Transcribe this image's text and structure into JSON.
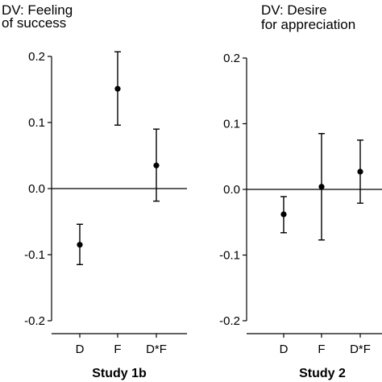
{
  "chart_data": [
    {
      "type": "scatter",
      "title_lines": [
        "DV: Feeling",
        "of success"
      ],
      "xlabel": "Study 1b",
      "ylabel": "",
      "categories": [
        "D",
        "F",
        "D*F"
      ],
      "values": [
        -0.085,
        0.151,
        0.035
      ],
      "error_low": [
        -0.115,
        0.096,
        -0.019
      ],
      "error_high": [
        -0.054,
        0.207,
        0.09
      ],
      "yticks": [
        "0.2",
        "0.1",
        "0.0",
        "-0.1",
        "-0.2"
      ],
      "ytick_values": [
        0.2,
        0.1,
        0.0,
        -0.1,
        -0.2
      ],
      "ylim": [
        -0.2,
        0.2
      ],
      "reference_line": 0.0,
      "grid": false
    },
    {
      "type": "scatter",
      "title_lines": [
        "DV: Desire",
        "for appreciation"
      ],
      "xlabel": "Study 2",
      "ylabel": "",
      "categories": [
        "D",
        "F",
        "D*F"
      ],
      "values": [
        -0.038,
        0.004,
        0.027
      ],
      "error_low": [
        -0.066,
        -0.077,
        -0.021
      ],
      "error_high": [
        -0.011,
        0.085,
        0.075
      ],
      "yticks": [
        "0.2",
        "0.1",
        "0.0",
        "-0.1",
        "-0.2"
      ],
      "ytick_values": [
        0.2,
        0.1,
        0.0,
        -0.1,
        -0.2
      ],
      "ylim": [
        -0.2,
        0.2
      ],
      "reference_line": 0.0,
      "grid": false
    }
  ]
}
